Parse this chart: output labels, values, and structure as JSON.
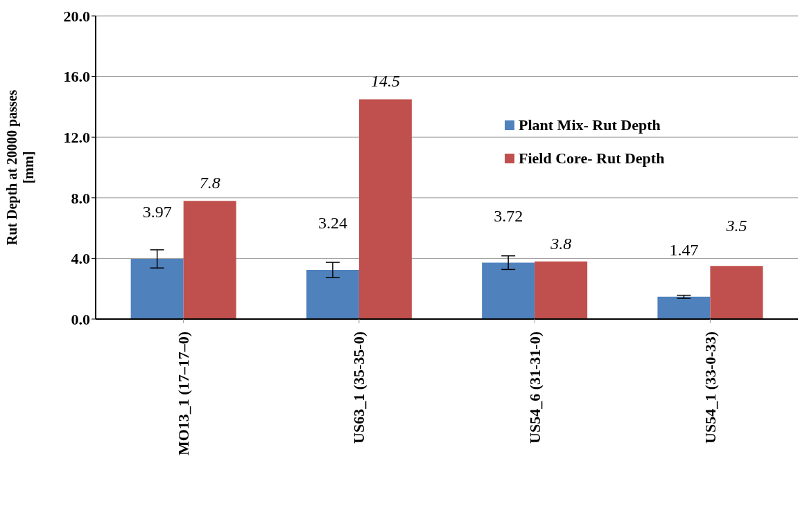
{
  "chart_data": {
    "type": "bar",
    "ylabel": "Rut Depth at 20000 passes\n[mm]",
    "categories": [
      "MO13_1 (17–17–0)",
      "US63_1 (35-35-0)",
      "US54_6 (31-31-0)",
      "US54_1 (33-0-33)"
    ],
    "series": [
      {
        "name": "Plant Mix- Rut Depth",
        "color": "#4f81bd",
        "values": [
          3.97,
          3.24,
          3.72,
          1.47
        ],
        "errors": [
          0.6,
          0.5,
          0.45,
          0.1
        ]
      },
      {
        "name": "Field Core- Rut Depth",
        "color": "#c0504d",
        "values": [
          7.8,
          14.5,
          3.8,
          3.5
        ]
      }
    ],
    "ylim": [
      0,
      20
    ],
    "yticks": [
      {
        "value": 0,
        "label": "0.0"
      },
      {
        "value": 4,
        "label": "4.0"
      },
      {
        "value": 8,
        "label": "8.0"
      },
      {
        "value": 12,
        "label": "12.0"
      },
      {
        "value": 16,
        "label": "16.0"
      },
      {
        "value": 20,
        "label": "20.0"
      }
    ],
    "grid": "y",
    "legend": "right",
    "data_labels": true
  }
}
